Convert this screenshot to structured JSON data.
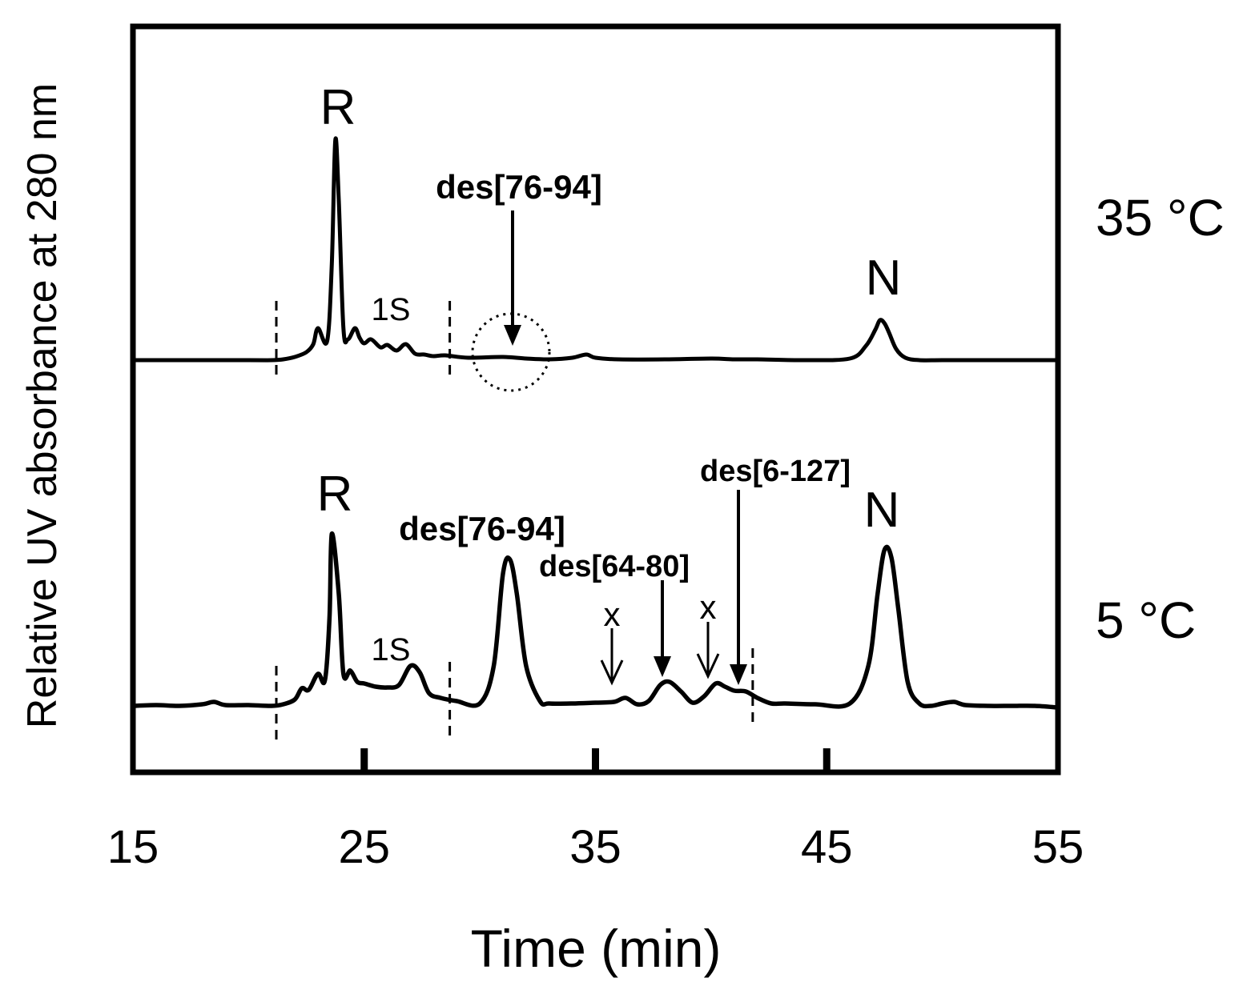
{
  "chart_data": {
    "type": "line",
    "title": "",
    "xlabel": "Time (min)",
    "ylabel": "Relative UV absorbance at 280 nm",
    "xlim": [
      15,
      55
    ],
    "x_ticks": [
      "15",
      "25",
      "35",
      "45",
      "55"
    ],
    "y_ticks": [],
    "grid": false,
    "legend": "none",
    "colors": {
      "trace": "#000000",
      "frame": "#000000"
    },
    "series": [
      {
        "name": "35 °C",
        "x": [
          15,
          20,
          21,
          21.5,
          22,
          22.5,
          22.8,
          23.0,
          23.4,
          23.6,
          23.75,
          23.9,
          24.1,
          24.3,
          24.6,
          24.8,
          25.0,
          25.3,
          25.7,
          26.0,
          26.4,
          26.8,
          27.2,
          27.6,
          28,
          28.5,
          29.5,
          31,
          32,
          33,
          34,
          34.6,
          35,
          36,
          38,
          40,
          41,
          42,
          44,
          46,
          46.7,
          47.1,
          47.3,
          47.5,
          47.7,
          48.0,
          48.4,
          49,
          50,
          52,
          55
        ],
        "values": [
          0,
          0,
          0.0,
          0.1,
          0.4,
          1.0,
          2.0,
          4.0,
          2.4,
          12,
          27.5,
          20,
          4,
          2.6,
          4.0,
          2.8,
          2.1,
          2.6,
          1.6,
          1.9,
          1.2,
          2.0,
          0.8,
          0.7,
          0.5,
          0.6,
          0.3,
          0.4,
          0.2,
          0.1,
          0.3,
          0.7,
          0.3,
          0.1,
          0.1,
          0.2,
          0.1,
          0.1,
          0.0,
          0.2,
          1.8,
          3.8,
          5.0,
          4.6,
          3.4,
          1.4,
          0.3,
          0.0,
          0.0,
          0.0,
          0.0
        ]
      },
      {
        "name": "5 °C",
        "x": [
          15,
          16,
          17,
          18,
          18.5,
          19,
          20,
          21,
          21.5,
          22,
          22.3,
          22.6,
          23.0,
          23.3,
          23.5,
          23.6,
          23.9,
          24.1,
          24.4,
          24.7,
          25.0,
          25.5,
          26,
          26.5,
          27.0,
          27.4,
          27.8,
          28.3,
          29,
          30,
          30.6,
          31.0,
          31.3,
          31.6,
          32.0,
          32.6,
          33,
          34,
          35,
          35.8,
          36.3,
          36.8,
          37.3,
          37.8,
          38.2,
          38.7,
          39.2,
          39.7,
          40.2,
          40.6,
          41.0,
          41.5,
          42.0,
          42.6,
          43.2,
          44.5,
          46,
          46.8,
          47.2,
          47.5,
          47.8,
          48.1,
          48.5,
          49,
          49.5,
          50,
          50.5,
          51,
          52,
          53,
          54,
          55
        ],
        "values": [
          0.0,
          0.1,
          0.0,
          0.2,
          0.5,
          0.1,
          0.1,
          0.0,
          0.2,
          0.8,
          2.2,
          2.0,
          4.0,
          3.2,
          11,
          21.5,
          14,
          4.0,
          4.4,
          3.0,
          2.8,
          2.4,
          2.3,
          2.6,
          5.0,
          4.2,
          1.6,
          1.0,
          0.6,
          0.3,
          5.0,
          16.5,
          18.3,
          14,
          5.0,
          0.6,
          0.3,
          0.3,
          0.4,
          0.5,
          1.0,
          0.2,
          0.6,
          2.6,
          3.0,
          1.8,
          0.4,
          1.2,
          2.8,
          2.4,
          1.9,
          1.8,
          1.0,
          0.3,
          0.3,
          0.2,
          0.3,
          5.0,
          14,
          19.5,
          18.5,
          12,
          3.0,
          0.3,
          0.0,
          0.3,
          0.5,
          0.1,
          0.0,
          0.0,
          0.0,
          -0.2
        ]
      }
    ],
    "annotations": {
      "peak_R": "R",
      "peak_N": "N",
      "peak_1S": "1S",
      "des_76_94": "des[76-94]",
      "des_64_80": "des[64-80]",
      "des_6_127": "des[6-127]",
      "x_mark": "x"
    }
  }
}
